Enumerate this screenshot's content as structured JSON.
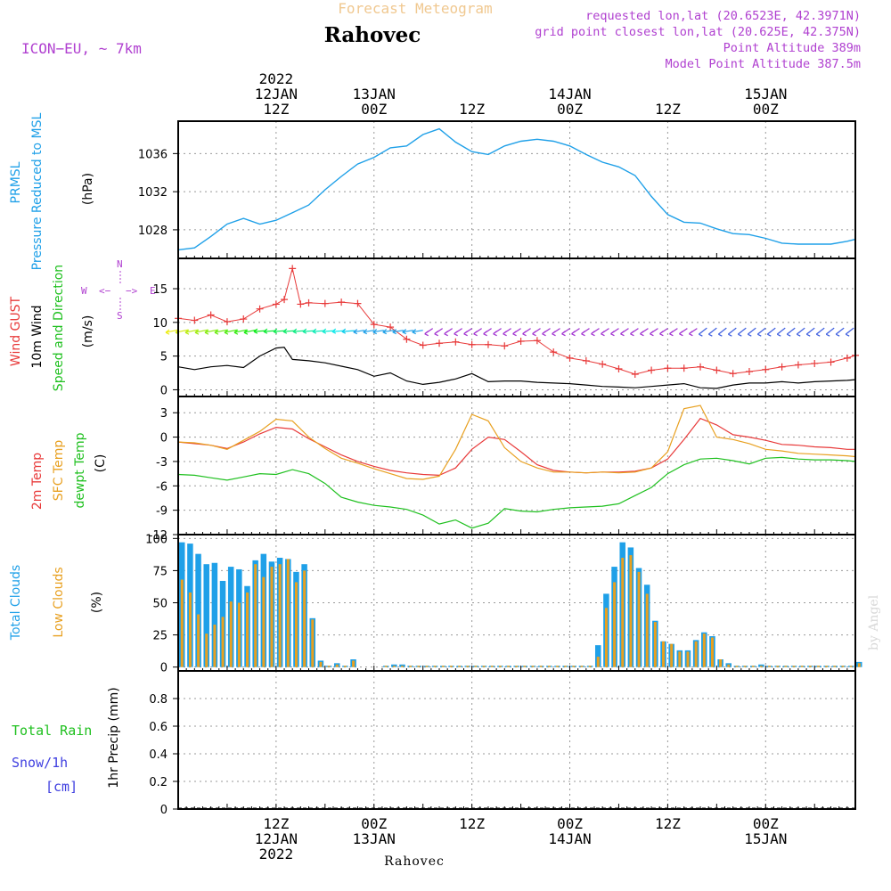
{
  "header": {
    "product": "Forecast Meteogram",
    "location": "Rahovec",
    "model": "ICON−EU, ~ 7km",
    "requested": "requested lon,lat (20.6523E, 42.3971N)",
    "gridpoint": "grid point closest lon,lat (20.625E, 42.375N)",
    "point_alt": "Point Altitude 389m",
    "model_alt": "Model Point Altitude 387.5m",
    "credit": "by Angel",
    "footer_location": "Rahovec"
  },
  "time_axis": {
    "start_hour": 0,
    "end_hour": 83,
    "top_labels": [
      {
        "h": 12,
        "lines": [
          "2022",
          "12JAN",
          "12Z"
        ]
      },
      {
        "h": 24,
        "lines": [
          "13JAN",
          "00Z"
        ]
      },
      {
        "h": 36,
        "lines": [
          "12Z"
        ]
      },
      {
        "h": 48,
        "lines": [
          "14JAN",
          "00Z"
        ]
      },
      {
        "h": 60,
        "lines": [
          "12Z"
        ]
      },
      {
        "h": 72,
        "lines": [
          "15JAN",
          "00Z"
        ]
      }
    ],
    "bottom_labels": [
      {
        "h": 12,
        "lines": [
          "12Z",
          "12JAN",
          "2022"
        ]
      },
      {
        "h": 24,
        "lines": [
          "00Z",
          "13JAN"
        ]
      },
      {
        "h": 36,
        "lines": [
          "12Z"
        ]
      },
      {
        "h": 48,
        "lines": [
          "00Z",
          "14JAN"
        ]
      },
      {
        "h": 60,
        "lines": [
          "12Z"
        ]
      },
      {
        "h": 72,
        "lines": [
          "00Z",
          "15JAN"
        ]
      }
    ]
  },
  "labels": {
    "p1": [
      {
        "text": "PRMSL",
        "color": "#1fa0e8"
      },
      {
        "text": "Pressure Reduced to MSL",
        "color": "#1fa0e8"
      },
      {
        "text": "(hPa)",
        "color": "#000000"
      }
    ],
    "p2": [
      {
        "text": "Wind GUST",
        "color": "#e83a3a"
      },
      {
        "text": "10m Wind",
        "color": "#000000"
      },
      {
        "text": "Speed and Direction",
        "color": "#1fc01f"
      },
      {
        "text": "(m/s)",
        "color": "#000000"
      }
    ],
    "p3": [
      {
        "text": "2m Temp",
        "color": "#e83a3a"
      },
      {
        "text": "SFC Temp",
        "color": "#e8a020"
      },
      {
        "text": "dewpt Temp",
        "color": "#1fc01f"
      },
      {
        "text": "(C)",
        "color": "#000000"
      }
    ],
    "p4": [
      {
        "text": "Total Clouds",
        "color": "#1fa0e8"
      },
      {
        "text": "Low Clouds",
        "color": "#e8a020"
      },
      {
        "text": "(%)",
        "color": "#000000"
      }
    ],
    "p5_side": [
      "Total  Rain",
      "Snow/1h",
      "[cm]"
    ],
    "p5_axis": "1hr Precip (mm)",
    "compass": {
      "w": "W",
      "arrow_l": "<−",
      "arrow_r": "−>",
      "e": "E",
      "n": "N",
      "s": "S"
    }
  },
  "colors": {
    "pressure": "#1fa0e8",
    "gust": "#e83a3a",
    "wind": "#000000",
    "t2m": "#e83a3a",
    "tsfc": "#e8a020",
    "dewpt": "#1fc01f",
    "total_clouds": "#1fa0e8",
    "low_clouds": "#e8a020",
    "compass": "#b040d0"
  },
  "chart_data": [
    {
      "type": "line",
      "panel": "p1",
      "ylabel": "(hPa)",
      "yticks": [
        1028,
        1032,
        1036
      ],
      "ylim": [
        1025,
        1039.4
      ],
      "grid": true,
      "series": [
        {
          "name": "PRMSL",
          "x": [
            0,
            2,
            4,
            6,
            8,
            10,
            12,
            14,
            16,
            18,
            20,
            22,
            24,
            26,
            28,
            30,
            32,
            34,
            36,
            38,
            40,
            42,
            44,
            46,
            48,
            50,
            52,
            54,
            56,
            58,
            60,
            62,
            64,
            66,
            68,
            70,
            72,
            74,
            76,
            78,
            80,
            82,
            83
          ],
          "y": [
            1025.9,
            1026.1,
            1027.3,
            1028.6,
            1029.2,
            1028.6,
            1029.0,
            1029.8,
            1030.6,
            1032.2,
            1033.6,
            1034.9,
            1035.6,
            1036.6,
            1036.8,
            1038.0,
            1038.6,
            1037.2,
            1036.2,
            1035.9,
            1036.8,
            1037.3,
            1037.5,
            1037.3,
            1036.8,
            1035.9,
            1035.1,
            1034.6,
            1033.7,
            1031.5,
            1029.6,
            1028.8,
            1028.7,
            1028.1,
            1027.6,
            1027.5,
            1027.1,
            1026.6,
            1026.5,
            1026.5,
            1026.5,
            1026.8,
            1027.0
          ]
        }
      ]
    },
    {
      "type": "line",
      "panel": "p2",
      "ylabel": "(m/s)",
      "yticks": [
        0,
        5,
        10,
        15
      ],
      "ylim": [
        -1,
        19.5
      ],
      "grid": true,
      "series": [
        {
          "name": "Wind GUST",
          "x": [
            0,
            2,
            4,
            6,
            8,
            10,
            12,
            13,
            14,
            15,
            16,
            18,
            20,
            22,
            24,
            26,
            28,
            30,
            32,
            34,
            36,
            38,
            40,
            42,
            44,
            46,
            48,
            50,
            52,
            54,
            56,
            58,
            60,
            62,
            64,
            66,
            68,
            70,
            72,
            74,
            76,
            78,
            80,
            82,
            83
          ],
          "y": [
            10.6,
            10.3,
            11.1,
            10.1,
            10.5,
            12.0,
            12.7,
            13.4,
            18.0,
            12.7,
            12.9,
            12.8,
            13.0,
            12.8,
            9.7,
            9.3,
            7.5,
            6.6,
            6.9,
            7.1,
            6.7,
            6.7,
            6.5,
            7.2,
            7.3,
            5.6,
            4.7,
            4.3,
            3.8,
            3.1,
            2.3,
            2.9,
            3.2,
            3.2,
            3.4,
            2.9,
            2.4,
            2.7,
            3.0,
            3.4,
            3.7,
            3.9,
            4.1,
            4.7,
            5.1
          ]
        },
        {
          "name": "10m Wind",
          "x": [
            0,
            2,
            4,
            6,
            8,
            10,
            12,
            13,
            14,
            16,
            18,
            20,
            22,
            24,
            26,
            28,
            30,
            32,
            34,
            36,
            38,
            40,
            42,
            44,
            46,
            48,
            50,
            52,
            54,
            56,
            58,
            60,
            62,
            64,
            66,
            68,
            70,
            72,
            74,
            76,
            78,
            80,
            82,
            83
          ],
          "y": [
            3.4,
            3.0,
            3.4,
            3.6,
            3.3,
            5.0,
            6.2,
            6.3,
            4.5,
            4.3,
            4.0,
            3.5,
            3.0,
            2.0,
            2.5,
            1.3,
            0.8,
            1.1,
            1.6,
            2.4,
            1.2,
            1.3,
            1.3,
            1.1,
            1.0,
            0.9,
            0.7,
            0.5,
            0.4,
            0.3,
            0.5,
            0.7,
            0.9,
            0.3,
            0.2,
            0.7,
            1.0,
            1.0,
            1.2,
            1.0,
            1.2,
            1.3,
            1.4,
            1.5
          ]
        }
      ]
    },
    {
      "type": "line",
      "panel": "p3",
      "ylabel": "(C)",
      "yticks": [
        -12,
        -9,
        -6,
        -3,
        0,
        3
      ],
      "ylim": [
        -12,
        5
      ],
      "grid": true,
      "series": [
        {
          "name": "2m Temp",
          "x": [
            0,
            2,
            4,
            6,
            8,
            10,
            12,
            14,
            16,
            18,
            20,
            22,
            24,
            26,
            28,
            30,
            32,
            34,
            36,
            38,
            40,
            42,
            44,
            46,
            48,
            50,
            52,
            54,
            56,
            58,
            60,
            62,
            64,
            66,
            68,
            70,
            72,
            74,
            76,
            78,
            80,
            82,
            83
          ],
          "y": [
            -0.6,
            -0.8,
            -1.0,
            -1.4,
            -0.6,
            0.4,
            1.2,
            1.0,
            -0.2,
            -1.2,
            -2.2,
            -3.0,
            -3.6,
            -4.1,
            -4.4,
            -4.6,
            -4.7,
            -3.8,
            -1.5,
            0.0,
            -0.3,
            -1.8,
            -3.4,
            -4.1,
            -4.3,
            -4.4,
            -4.3,
            -4.3,
            -4.2,
            -3.8,
            -2.7,
            -0.3,
            2.3,
            1.5,
            0.3,
            0.0,
            -0.4,
            -0.9,
            -1.0,
            -1.2,
            -1.3,
            -1.5,
            -1.5
          ]
        },
        {
          "name": "SFC Temp",
          "x": [
            0,
            2,
            4,
            6,
            8,
            10,
            12,
            14,
            16,
            18,
            20,
            22,
            24,
            26,
            28,
            30,
            32,
            34,
            36,
            38,
            40,
            42,
            44,
            46,
            48,
            50,
            52,
            54,
            56,
            58,
            60,
            62,
            64,
            66,
            68,
            70,
            72,
            74,
            76,
            78,
            80,
            82,
            83
          ],
          "y": [
            -0.6,
            -0.7,
            -1.0,
            -1.5,
            -0.4,
            0.7,
            2.2,
            2.0,
            0.0,
            -1.4,
            -2.6,
            -3.2,
            -3.9,
            -4.5,
            -5.1,
            -5.2,
            -4.8,
            -1.5,
            2.8,
            2.0,
            -1.3,
            -3.0,
            -3.8,
            -4.3,
            -4.3,
            -4.4,
            -4.3,
            -4.4,
            -4.3,
            -3.8,
            -1.8,
            3.5,
            3.9,
            0.0,
            -0.3,
            -0.8,
            -1.5,
            -1.7,
            -2.0,
            -2.1,
            -2.2,
            -2.3,
            -2.4
          ]
        },
        {
          "name": "dewpt Temp",
          "x": [
            0,
            2,
            4,
            6,
            8,
            10,
            12,
            14,
            16,
            18,
            20,
            22,
            24,
            26,
            28,
            30,
            32,
            34,
            36,
            38,
            40,
            42,
            44,
            46,
            48,
            50,
            52,
            54,
            56,
            58,
            60,
            62,
            64,
            66,
            68,
            70,
            72,
            74,
            76,
            78,
            80,
            82,
            83
          ],
          "y": [
            -4.6,
            -4.7,
            -5.0,
            -5.3,
            -4.9,
            -4.5,
            -4.6,
            -4.0,
            -4.5,
            -5.7,
            -7.4,
            -8.0,
            -8.4,
            -8.6,
            -8.9,
            -9.6,
            -10.7,
            -10.2,
            -11.2,
            -10.6,
            -8.8,
            -9.1,
            -9.2,
            -8.9,
            -8.7,
            -8.6,
            -8.5,
            -8.2,
            -7.2,
            -6.2,
            -4.5,
            -3.4,
            -2.7,
            -2.6,
            -2.9,
            -3.3,
            -2.6,
            -2.5,
            -2.7,
            -2.8,
            -2.8,
            -2.9,
            -3.0
          ]
        }
      ]
    },
    {
      "type": "bar",
      "panel": "p4",
      "ylabel": "(%)",
      "yticks": [
        0,
        25,
        50,
        75,
        100
      ],
      "ylim": [
        -3,
        103
      ],
      "grid": true,
      "x": [
        0,
        1,
        2,
        3,
        4,
        5,
        6,
        7,
        8,
        9,
        10,
        11,
        12,
        13,
        14,
        15,
        16,
        17,
        18,
        19,
        20,
        21,
        22,
        23,
        24,
        25,
        26,
        27,
        28,
        29,
        30,
        31,
        32,
        33,
        34,
        35,
        36,
        37,
        38,
        39,
        40,
        41,
        42,
        43,
        44,
        45,
        46,
        47,
        48,
        49,
        50,
        51,
        52,
        53,
        54,
        55,
        56,
        57,
        58,
        59,
        60,
        61,
        62,
        63,
        64,
        65,
        66,
        67,
        68,
        69,
        70,
        71,
        72,
        73,
        74,
        75,
        76,
        77,
        78,
        79,
        80,
        81,
        82,
        83
      ],
      "series": [
        {
          "name": "Total Clouds",
          "values": [
            97,
            96,
            88,
            80,
            81,
            67,
            78,
            76,
            63,
            83,
            88,
            82,
            85,
            84,
            74,
            80,
            38,
            5,
            1,
            3,
            1,
            6,
            0,
            0,
            0,
            1,
            2,
            2,
            1,
            1,
            1,
            1,
            1,
            1,
            1,
            1,
            1,
            1,
            1,
            1,
            1,
            1,
            1,
            1,
            1,
            1,
            1,
            1,
            1,
            1,
            1,
            17,
            57,
            78,
            97,
            93,
            77,
            64,
            36,
            20,
            18,
            13,
            13,
            21,
            27,
            24,
            6,
            3,
            1,
            1,
            1,
            2,
            1,
            1,
            1,
            1,
            1,
            1,
            1,
            1,
            1,
            1,
            1,
            4
          ]
        },
        {
          "name": "Low Clouds",
          "values": [
            68,
            58,
            41,
            26,
            33,
            39,
            51,
            50,
            58,
            80,
            70,
            78,
            80,
            84,
            66,
            75,
            37,
            4,
            1,
            2,
            1,
            5,
            0,
            0,
            0,
            1,
            1,
            1,
            1,
            1,
            1,
            1,
            1,
            1,
            1,
            1,
            1,
            1,
            1,
            1,
            1,
            1,
            1,
            1,
            1,
            1,
            1,
            1,
            1,
            1,
            1,
            8,
            46,
            66,
            85,
            87,
            74,
            57,
            35,
            20,
            18,
            12,
            12,
            20,
            26,
            23,
            6,
            2,
            1,
            1,
            1,
            1,
            1,
            1,
            1,
            1,
            1,
            1,
            1,
            1,
            1,
            1,
            1,
            3
          ]
        }
      ]
    },
    {
      "type": "bar",
      "panel": "p5",
      "ylabel": "1hr Precip (mm)",
      "yticks": [
        0,
        0.2,
        0.4,
        0.6,
        0.8
      ],
      "ylim": [
        0,
        1.0
      ],
      "grid": true,
      "series": [
        {
          "name": "Total Rain",
          "values": []
        },
        {
          "name": "Snow/1h",
          "values": []
        }
      ]
    }
  ]
}
